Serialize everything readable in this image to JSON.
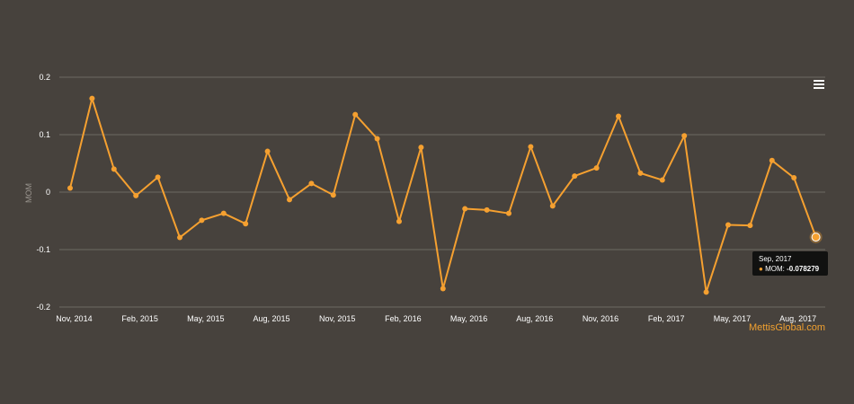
{
  "chart_data": {
    "type": "line",
    "title": "",
    "xlabel": "",
    "ylabel": "MOM",
    "ylim": [
      -0.2,
      0.2
    ],
    "yticks": [
      "0.2",
      "0.1",
      "0",
      "-0.1",
      "-0.2"
    ],
    "xtick_labels": [
      "Nov, 2014",
      "Feb, 2015",
      "May, 2015",
      "Aug, 2015",
      "Nov, 2015",
      "Feb, 2016",
      "May, 2016",
      "Aug, 2016",
      "Nov, 2016",
      "Feb, 2017",
      "May, 2017",
      "Aug, 2017"
    ],
    "grid": true,
    "series": [
      {
        "name": "MOM",
        "color": "#f5a030",
        "points": [
          {
            "x": "2014-10",
            "y": 0.007
          },
          {
            "x": "2014-11",
            "y": 0.163
          },
          {
            "x": "2014-12",
            "y": 0.04
          },
          {
            "x": "2015-01",
            "y": -0.006
          },
          {
            "x": "2015-02",
            "y": 0.026
          },
          {
            "x": "2015-03",
            "y": -0.079
          },
          {
            "x": "2015-04",
            "y": -0.049
          },
          {
            "x": "2015-05",
            "y": -0.037
          },
          {
            "x": "2015-06",
            "y": -0.055
          },
          {
            "x": "2015-07",
            "y": 0.071
          },
          {
            "x": "2015-08",
            "y": -0.013
          },
          {
            "x": "2015-09",
            "y": 0.015
          },
          {
            "x": "2015-10",
            "y": -0.005
          },
          {
            "x": "2015-11",
            "y": 0.135
          },
          {
            "x": "2015-12",
            "y": 0.093
          },
          {
            "x": "2016-01",
            "y": -0.051
          },
          {
            "x": "2016-02",
            "y": 0.078
          },
          {
            "x": "2016-03",
            "y": -0.168
          },
          {
            "x": "2016-04",
            "y": -0.029
          },
          {
            "x": "2016-05",
            "y": -0.031
          },
          {
            "x": "2016-06",
            "y": -0.037
          },
          {
            "x": "2016-07",
            "y": 0.079
          },
          {
            "x": "2016-08",
            "y": -0.024
          },
          {
            "x": "2016-09",
            "y": 0.028
          },
          {
            "x": "2016-10",
            "y": 0.042
          },
          {
            "x": "2016-11",
            "y": 0.132
          },
          {
            "x": "2016-12",
            "y": 0.033
          },
          {
            "x": "2017-01",
            "y": 0.021
          },
          {
            "x": "2017-02",
            "y": 0.098
          },
          {
            "x": "2017-03",
            "y": -0.174
          },
          {
            "x": "2017-04",
            "y": -0.057
          },
          {
            "x": "2017-05",
            "y": -0.058
          },
          {
            "x": "2017-06",
            "y": 0.055
          },
          {
            "x": "2017-07",
            "y": 0.025
          },
          {
            "x": "2017-08",
            "y": -0.078279
          }
        ]
      }
    ],
    "tooltip": {
      "date": "Sep, 2017",
      "label": "MOM:",
      "value": "-0.078279"
    }
  },
  "credit": "MettisGlobal.com",
  "colors": {
    "background": "#47423d",
    "line": "#f5a030",
    "grid": "#6e6964",
    "text": "#ffffff",
    "credit": "#f0a030"
  },
  "icons": {
    "menu": "hamburger-menu-icon"
  }
}
